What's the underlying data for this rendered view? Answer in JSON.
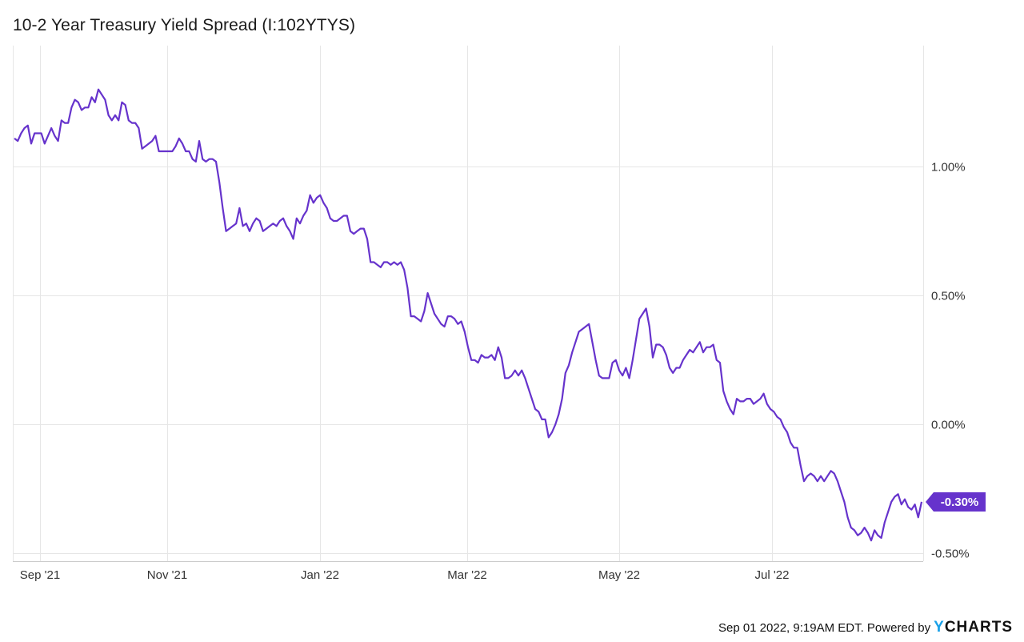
{
  "title": "10-2 Year Treasury Yield Spread (I:102YTYS)",
  "footer": {
    "text": "Sep 01 2022, 9:19AM EDT. Powered by",
    "logo_y": "Y",
    "logo_rest": "CHARTS"
  },
  "colors": {
    "line": "#6633cc",
    "badge": "#6633cc",
    "grid": "#e6e6e6",
    "logo_accent": "#1aa1e8"
  },
  "chart_data": {
    "type": "line",
    "title": "10-2 Year Treasury Yield Spread (I:102YTYS)",
    "xlabel": "",
    "ylabel": "",
    "ylim": [
      -0.53,
      1.47
    ],
    "x_tick_labels": [
      "Sep '21",
      "Nov '21",
      "Jan '22",
      "Mar '22",
      "May '22",
      "Jul '22"
    ],
    "y_tick_labels": [
      "1.00%",
      "0.50%",
      "0.00%",
      "-0.50%"
    ],
    "y_ticks": [
      1.0,
      0.5,
      0.0,
      -0.5
    ],
    "last_value_label": "-0.30%",
    "last_value": -0.3,
    "grid": true,
    "series": [
      {
        "values": [
          1.11,
          1.1,
          1.13,
          1.15,
          1.16,
          1.09,
          1.13,
          1.13,
          1.13,
          1.09,
          1.12,
          1.15,
          1.12,
          1.1,
          1.18,
          1.17,
          1.17,
          1.23,
          1.26,
          1.25,
          1.22,
          1.23,
          1.23,
          1.27,
          1.25,
          1.3,
          1.28,
          1.26,
          1.2,
          1.18,
          1.2,
          1.18,
          1.25,
          1.24,
          1.18,
          1.17,
          1.17,
          1.15,
          1.07,
          1.08,
          1.09,
          1.1,
          1.12,
          1.06,
          1.06,
          1.06,
          1.06,
          1.06,
          1.08,
          1.11,
          1.09,
          1.06,
          1.06,
          1.03,
          1.02,
          1.1,
          1.03,
          1.02,
          1.03,
          1.03,
          1.02,
          0.94,
          0.84,
          0.75,
          0.76,
          0.77,
          0.78,
          0.84,
          0.77,
          0.78,
          0.75,
          0.78,
          0.8,
          0.79,
          0.75,
          0.76,
          0.77,
          0.78,
          0.77,
          0.79,
          0.8,
          0.77,
          0.75,
          0.72,
          0.8,
          0.78,
          0.81,
          0.83,
          0.89,
          0.86,
          0.88,
          0.89,
          0.86,
          0.84,
          0.8,
          0.79,
          0.79,
          0.8,
          0.81,
          0.81,
          0.75,
          0.74,
          0.75,
          0.76,
          0.76,
          0.72,
          0.63,
          0.63,
          0.62,
          0.61,
          0.63,
          0.63,
          0.62,
          0.63,
          0.62,
          0.63,
          0.6,
          0.53,
          0.42,
          0.42,
          0.41,
          0.4,
          0.44,
          0.51,
          0.47,
          0.43,
          0.41,
          0.39,
          0.38,
          0.42,
          0.42,
          0.41,
          0.39,
          0.4,
          0.36,
          0.3,
          0.25,
          0.25,
          0.24,
          0.27,
          0.26,
          0.26,
          0.27,
          0.25,
          0.3,
          0.26,
          0.18,
          0.18,
          0.19,
          0.21,
          0.19,
          0.21,
          0.18,
          0.14,
          0.1,
          0.06,
          0.05,
          0.02,
          0.02,
          -0.05,
          -0.03,
          0.0,
          0.04,
          0.1,
          0.2,
          0.23,
          0.28,
          0.32,
          0.36,
          0.37,
          0.38,
          0.39,
          0.32,
          0.25,
          0.19,
          0.18,
          0.18,
          0.18,
          0.24,
          0.25,
          0.21,
          0.19,
          0.22,
          0.18,
          0.25,
          0.33,
          0.41,
          0.43,
          0.45,
          0.38,
          0.26,
          0.31,
          0.31,
          0.3,
          0.27,
          0.22,
          0.2,
          0.22,
          0.22,
          0.25,
          0.27,
          0.29,
          0.28,
          0.3,
          0.32,
          0.28,
          0.3,
          0.3,
          0.31,
          0.25,
          0.24,
          0.13,
          0.09,
          0.06,
          0.04,
          0.1,
          0.09,
          0.09,
          0.1,
          0.1,
          0.08,
          0.09,
          0.1,
          0.12,
          0.08,
          0.06,
          0.05,
          0.03,
          0.02,
          -0.01,
          -0.03,
          -0.07,
          -0.09,
          -0.09,
          -0.16,
          -0.22,
          -0.2,
          -0.19,
          -0.2,
          -0.22,
          -0.2,
          -0.22,
          -0.2,
          -0.18,
          -0.19,
          -0.22,
          -0.26,
          -0.3,
          -0.36,
          -0.4,
          -0.41,
          -0.43,
          -0.42,
          -0.4,
          -0.42,
          -0.45,
          -0.41,
          -0.43,
          -0.44,
          -0.38,
          -0.34,
          -0.3,
          -0.28,
          -0.27,
          -0.31,
          -0.29,
          -0.32,
          -0.33,
          -0.31,
          -0.36,
          -0.3
        ]
      }
    ]
  }
}
